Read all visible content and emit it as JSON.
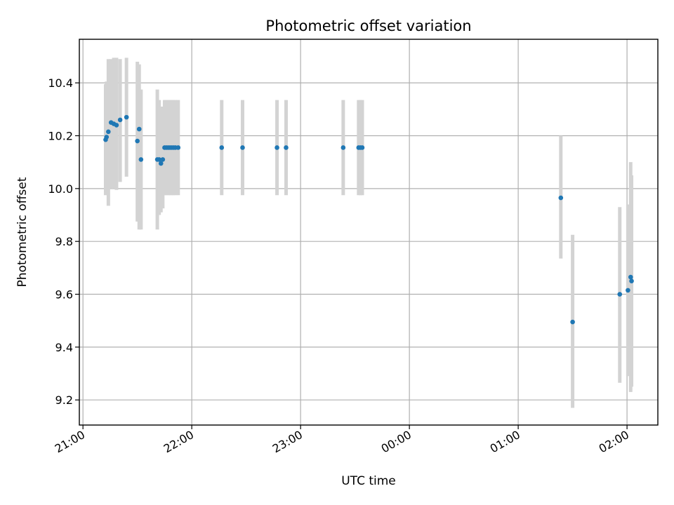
{
  "chart_data": {
    "type": "scatter",
    "title": "Photometric offset variation",
    "xlabel": "UTC time",
    "ylabel": "Photometric offset",
    "x_axis": {
      "kind": "time",
      "range": [
        "20:58",
        "02:17"
      ],
      "ticks": [
        {
          "value": "21:00",
          "label": "21:00"
        },
        {
          "value": "22:00",
          "label": "22:00"
        },
        {
          "value": "23:00",
          "label": "23:00"
        },
        {
          "value": "24:00",
          "label": "00:00"
        },
        {
          "value": "25:00",
          "label": "01:00"
        },
        {
          "value": "26:00",
          "label": "02:00"
        }
      ]
    },
    "y_axis": {
      "range": [
        9.105,
        10.565
      ],
      "ticks": [
        {
          "value": 9.2,
          "label": "9.2"
        },
        {
          "value": 9.4,
          "label": "9.4"
        },
        {
          "value": 9.6,
          "label": "9.6"
        },
        {
          "value": 9.8,
          "label": "9.8"
        },
        {
          "value": 10.0,
          "label": "10.0"
        },
        {
          "value": 10.2,
          "label": "10.2"
        },
        {
          "value": 10.4,
          "label": "10.4"
        }
      ]
    },
    "grid": true,
    "marker_color": "#1f77b4",
    "errorbar_color": "#d3d3d3",
    "points": [
      {
        "time": "21:12.5",
        "value": 10.185,
        "lo": 9.975,
        "hi": 10.395
      },
      {
        "time": "21:13.0",
        "value": 10.195,
        "lo": 9.985,
        "hi": 10.405
      },
      {
        "time": "21:14.0",
        "value": 10.215,
        "lo": 9.935,
        "hi": 10.49
      },
      {
        "time": "21:15.5",
        "value": 10.25,
        "lo": 10.0,
        "hi": 10.49
      },
      {
        "time": "21:17.0",
        "value": 10.245,
        "lo": 10.0,
        "hi": 10.495
      },
      {
        "time": "21:18.5",
        "value": 10.24,
        "lo": 9.995,
        "hi": 10.495
      },
      {
        "time": "21:20.5",
        "value": 10.26,
        "lo": 10.025,
        "hi": 10.49
      },
      {
        "time": "21:24.0",
        "value": 10.27,
        "lo": 10.045,
        "hi": 10.495
      },
      {
        "time": "21:30.0",
        "value": 10.18,
        "lo": 9.875,
        "hi": 10.48
      },
      {
        "time": "21:31.0",
        "value": 10.225,
        "lo": 9.845,
        "hi": 10.47
      },
      {
        "time": "21:32.0",
        "value": 10.11,
        "lo": 9.845,
        "hi": 10.375
      },
      {
        "time": "21:41.0",
        "value": 10.11,
        "lo": 9.845,
        "hi": 10.375
      },
      {
        "time": "21:42.0",
        "value": 10.11,
        "lo": 9.9,
        "hi": 10.335
      },
      {
        "time": "21:43.0",
        "value": 10.095,
        "lo": 9.91,
        "hi": 10.31
      },
      {
        "time": "21:44.0",
        "value": 10.11,
        "lo": 9.925,
        "hi": 10.31
      },
      {
        "time": "21:45.0",
        "value": 10.155,
        "lo": 9.975,
        "hi": 10.335
      },
      {
        "time": "21:46.0",
        "value": 10.155,
        "lo": 9.975,
        "hi": 10.335
      },
      {
        "time": "21:47.0",
        "value": 10.155,
        "lo": 9.975,
        "hi": 10.335
      },
      {
        "time": "21:48.0",
        "value": 10.155,
        "lo": 9.975,
        "hi": 10.335
      },
      {
        "time": "21:49.0",
        "value": 10.155,
        "lo": 9.975,
        "hi": 10.335
      },
      {
        "time": "21:50.0",
        "value": 10.155,
        "lo": 9.975,
        "hi": 10.335
      },
      {
        "time": "21:51.0",
        "value": 10.155,
        "lo": 9.975,
        "hi": 10.335
      },
      {
        "time": "21:52.5",
        "value": 10.155,
        "lo": 9.975,
        "hi": 10.335
      },
      {
        "time": "22:16.5",
        "value": 10.155,
        "lo": 9.975,
        "hi": 10.335
      },
      {
        "time": "22:28.0",
        "value": 10.155,
        "lo": 9.975,
        "hi": 10.335
      },
      {
        "time": "22:47.0",
        "value": 10.155,
        "lo": 9.975,
        "hi": 10.335
      },
      {
        "time": "22:52.0",
        "value": 10.155,
        "lo": 9.975,
        "hi": 10.335
      },
      {
        "time": "23:23.5",
        "value": 10.155,
        "lo": 9.975,
        "hi": 10.335
      },
      {
        "time": "23:32.0",
        "value": 10.155,
        "lo": 9.975,
        "hi": 10.335
      },
      {
        "time": "23:33.0",
        "value": 10.155,
        "lo": 9.975,
        "hi": 10.335
      },
      {
        "time": "23:34.0",
        "value": 10.155,
        "lo": 9.975,
        "hi": 10.335
      },
      {
        "time": "01:23.5",
        "value": 9.965,
        "lo": 9.735,
        "hi": 10.2
      },
      {
        "time": "01:30.0",
        "value": 9.495,
        "lo": 9.17,
        "hi": 9.825
      },
      {
        "time": "01:56.0",
        "value": 9.6,
        "lo": 9.265,
        "hi": 9.93
      },
      {
        "time": "02:00.5",
        "value": 9.615,
        "lo": 9.29,
        "hi": 9.94
      },
      {
        "time": "02:02.0",
        "value": 9.665,
        "lo": 9.23,
        "hi": 10.1
      },
      {
        "time": "02:02.5",
        "value": 9.65,
        "lo": 9.25,
        "hi": 10.05
      }
    ]
  }
}
